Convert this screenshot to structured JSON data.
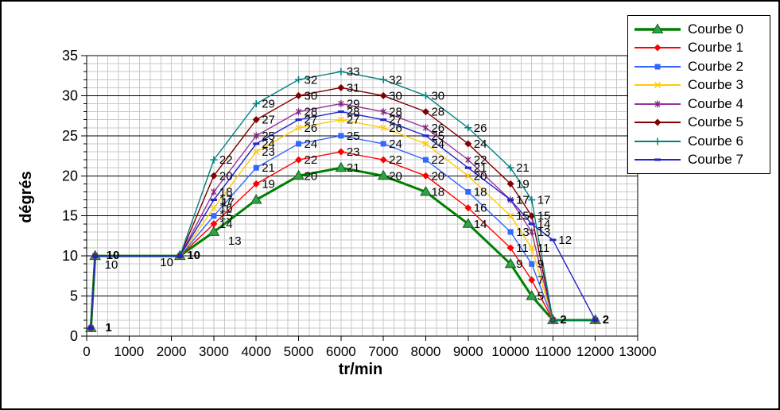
{
  "chart_data": {
    "type": "line",
    "title": "",
    "xlabel": "tr/min",
    "ylabel": "dégrés",
    "xlim": [
      0,
      13000
    ],
    "ylim": [
      0,
      35
    ],
    "x_ticks": [
      0,
      1000,
      2000,
      3000,
      4000,
      5000,
      6000,
      7000,
      8000,
      9000,
      10000,
      11000,
      12000,
      13000
    ],
    "y_ticks": [
      0,
      5,
      10,
      15,
      20,
      25,
      30,
      35
    ],
    "grid": {
      "minor_x_step": 250,
      "minor_y_step": 1,
      "major_y_step": 5,
      "minor_color": "#c8c8c8",
      "major_color": "#000000"
    },
    "legend_position": "right",
    "data_labels": true,
    "x": [
      100,
      200,
      2200,
      3000,
      4000,
      5000,
      6000,
      7000,
      8000,
      9000,
      10000,
      10500,
      11000,
      12000
    ],
    "series": [
      {
        "name": "Courbe 0",
        "color": "#008000",
        "marker": "triangle",
        "marker_color": "#33a046",
        "values": [
          1,
          10,
          10,
          13,
          17,
          20,
          21,
          20,
          18,
          14,
          9,
          5,
          2,
          2
        ]
      },
      {
        "name": "Courbe 1",
        "color": "#ff0000",
        "marker": "diamond",
        "marker_color": "#ff0000",
        "values": [
          1,
          10,
          10,
          14,
          19,
          22,
          23,
          22,
          20,
          16,
          11,
          7,
          2,
          2
        ]
      },
      {
        "name": "Courbe 2",
        "color": "#3366ff",
        "marker": "square",
        "marker_color": "#3366ff",
        "values": [
          1,
          10,
          10,
          15,
          21,
          24,
          25,
          24,
          22,
          18,
          13,
          9,
          2,
          2
        ]
      },
      {
        "name": "Courbe 3",
        "color": "#ffcc00",
        "marker": "x",
        "marker_color": "#ffcc00",
        "values": [
          1,
          10,
          10,
          16,
          23,
          26,
          27,
          26,
          24,
          20,
          15,
          11,
          2,
          2
        ]
      },
      {
        "name": "Courbe 4",
        "color": "#993399",
        "marker": "asterisk",
        "marker_color": "#772277",
        "values": [
          1,
          10,
          10,
          18,
          25,
          28,
          29,
          28,
          26,
          22,
          17,
          13,
          2,
          2
        ]
      },
      {
        "name": "Courbe 5",
        "color": "#800000",
        "marker": "diamond",
        "marker_color": "#800000",
        "values": [
          1,
          10,
          10,
          20,
          27,
          30,
          31,
          30,
          28,
          24,
          19,
          15,
          2,
          2
        ]
      },
      {
        "name": "Courbe 6",
        "color": "#008080",
        "marker": "plus",
        "marker_color": "#008080",
        "values": [
          1,
          10,
          10,
          22,
          29,
          32,
          33,
          32,
          30,
          26,
          21,
          17,
          2,
          2
        ]
      },
      {
        "name": "Courbe 7",
        "color": "#2222cc",
        "marker": "dash",
        "marker_color": "#2222cc",
        "values": [
          1,
          10,
          10,
          17,
          24,
          27,
          28,
          27,
          25,
          21,
          17,
          14,
          12,
          2
        ]
      }
    ]
  }
}
